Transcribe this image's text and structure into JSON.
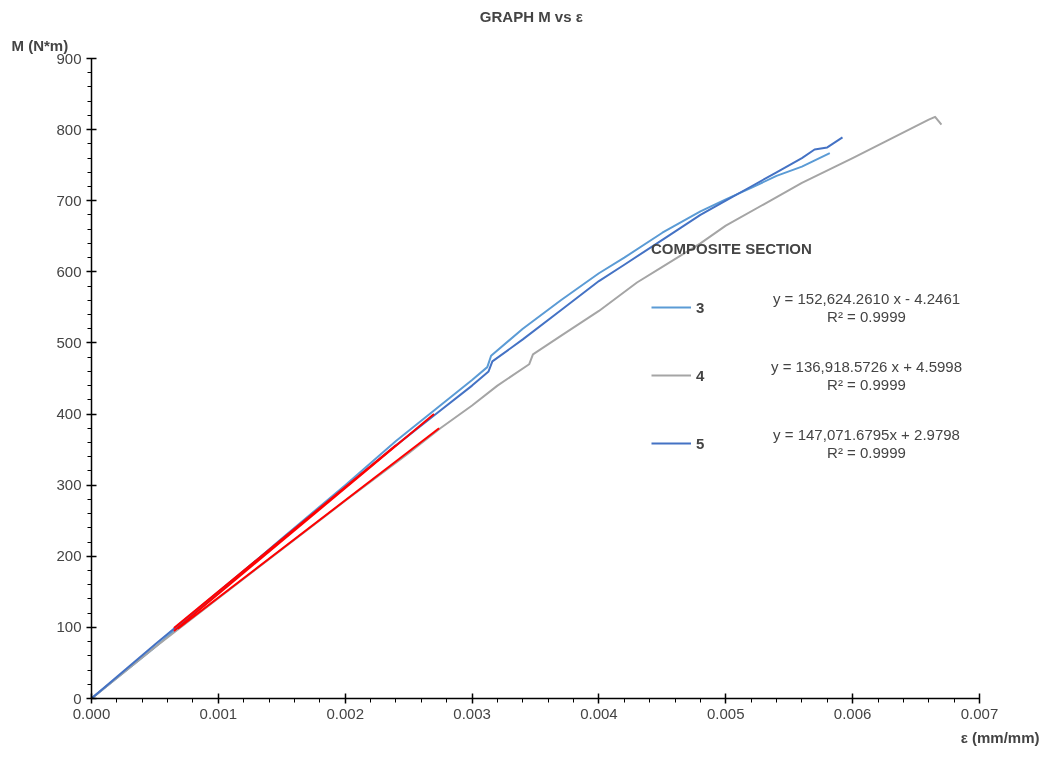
{
  "chart_data": {
    "type": "line",
    "title": "GRAPH   M vs ε",
    "xlabel": "ε (mm/mm)",
    "ylabel": "M (N*m)",
    "legend_title": "COMPOSITE SECTION",
    "xlim": [
      0,
      0.007
    ],
    "xticks": [
      {
        "value": 0,
        "label": "0.000"
      },
      0.001,
      0.002,
      0.003,
      0.004,
      0.005,
      0.006,
      0.007
    ],
    "ylim": [
      0,
      900
    ],
    "yticks": [
      0,
      100,
      200,
      300,
      400,
      500,
      600,
      700,
      800,
      900
    ],
    "grid": false,
    "legend": "right",
    "marker": "none",
    "line_style": "solid",
    "annotations": [
      "y = 152,624.2610 x - 4.2461\nR² = 0.9999",
      "y = 136,918.5726 x + 4.5998\nR² = 0.9999",
      "y = 147,071.6795x + 2.9798\nR² = 0.9999"
    ],
    "series": [
      {
        "name": "3",
        "color": "#5b9bd5",
        "x": [
          0,
          0.0005,
          0.0015,
          0.002,
          0.0024,
          0.0027,
          0.003,
          0.00312,
          0.00315,
          0.0034,
          0.0037,
          0.004,
          0.0042,
          0.0045,
          0.0048,
          0.005,
          0.0052,
          0.0054,
          0.0056,
          0.00582
        ],
        "values": [
          0,
          72,
          225,
          300,
          362,
          405,
          448,
          466,
          482,
          520,
          560,
          598,
          620,
          655,
          685,
          702,
          718,
          735,
          748,
          767
        ]
      },
      {
        "name": "4",
        "color": "#a5a5a5",
        "x": [
          0,
          0.0005,
          0.001,
          0.002,
          0.0025,
          0.00275,
          0.003,
          0.0032,
          0.00345,
          0.00348,
          0.0037,
          0.004,
          0.0043,
          0.0045,
          0.0048,
          0.005,
          0.0053,
          0.0056,
          0.006,
          0.0063,
          0.0066,
          0.00665,
          0.0067
        ],
        "values": [
          0,
          72,
          141,
          278,
          345,
          380,
          412,
          440,
          470,
          484,
          510,
          545,
          585,
          607,
          640,
          665,
          695,
          725,
          760,
          787,
          814,
          818,
          807
        ]
      },
      {
        "name": "5",
        "color": "#4472c4",
        "x": [
          0,
          0.0005,
          0.0015,
          0.002,
          0.0024,
          0.0027,
          0.003,
          0.00313,
          0.00316,
          0.0034,
          0.0037,
          0.004,
          0.0042,
          0.0045,
          0.0048,
          0.005,
          0.0052,
          0.0054,
          0.0056,
          0.0057,
          0.0058,
          0.00592
        ],
        "values": [
          0,
          76,
          224,
          297,
          356,
          398,
          440,
          460,
          474,
          505,
          546,
          587,
          610,
          645,
          680,
          700,
          720,
          740,
          760,
          772,
          775,
          789
        ]
      },
      {
        "color": "#ff0000",
        "x": [
          0.00065,
          0.0027
        ],
        "values": [
          95,
          400
        ]
      },
      {
        "color": "#ff0000",
        "x": [
          0.00068,
          0.00274
        ],
        "values": [
          98,
          380
        ]
      },
      {
        "color": "#ff0000",
        "x": [
          0.00065,
          0.0024
        ],
        "values": [
          99,
          356
        ]
      }
    ]
  }
}
